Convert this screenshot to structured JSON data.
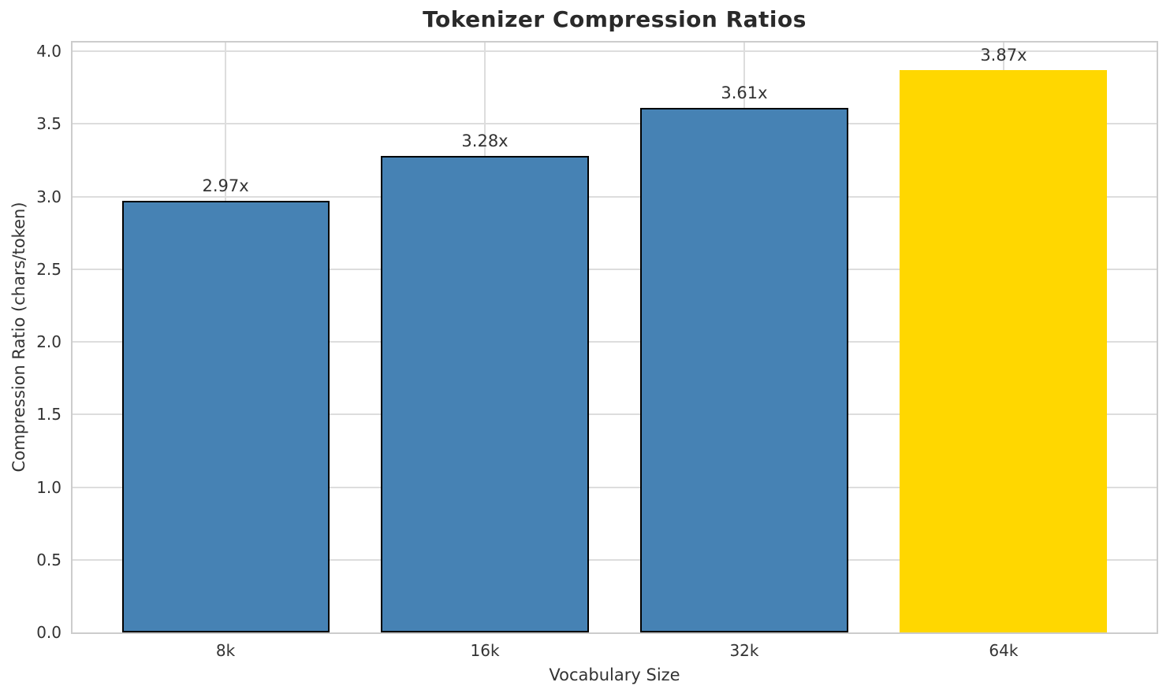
{
  "chart_data": {
    "type": "bar",
    "title": "Tokenizer Compression Ratios",
    "xlabel": "Vocabulary Size",
    "ylabel": "Compression Ratio (chars/token)",
    "categories": [
      "8k",
      "16k",
      "32k",
      "64k"
    ],
    "values": [
      2.97,
      3.28,
      3.61,
      3.87
    ],
    "bar_value_labels": [
      "2.97x",
      "3.28x",
      "3.61x",
      "3.87x"
    ],
    "bar_colors": [
      "#4682B4",
      "#4682B4",
      "#4682B4",
      "#FFD700"
    ],
    "bar_edge_colors": [
      "#000000",
      "#000000",
      "#000000",
      "#FFD700"
    ],
    "ytick_labels": [
      "0.0",
      "0.5",
      "1.0",
      "1.5",
      "2.0",
      "2.5",
      "3.0",
      "3.5",
      "4.0"
    ],
    "ytick_step": 0.5,
    "ylim": [
      0,
      4.06
    ],
    "xlim": [
      -0.59,
      3.59
    ],
    "bar_width_units": 0.8,
    "grid": "both",
    "legend": "none",
    "colors": {
      "grid": "#dddddd",
      "spine": "#cccccc",
      "title_text": "#2a2a2a",
      "tick_text": "#333333",
      "background": "#ffffff",
      "bar_default": "#4682B4",
      "bar_highlight": "#FFD700"
    }
  }
}
